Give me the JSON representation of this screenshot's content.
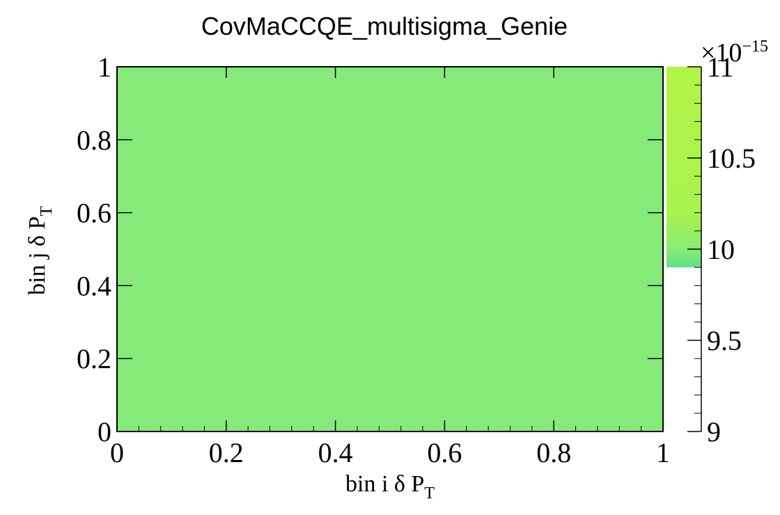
{
  "chart_data": {
    "type": "heatmap",
    "title": "CovMaCCQE_multisigma_Genie",
    "xlabel": {
      "main": "bin i  δ P",
      "sub": "T"
    },
    "ylabel": {
      "main": "bin j δ P",
      "sub": "T"
    },
    "xlim": [
      0,
      1
    ],
    "ylim": [
      0,
      1
    ],
    "x_ticks": [
      "0",
      "0.2",
      "0.4",
      "0.6",
      "0.8",
      "1"
    ],
    "y_ticks": [
      "0",
      "0.2",
      "0.4",
      "0.6",
      "0.8",
      "1"
    ],
    "cells": [
      {
        "x": [
          0,
          1
        ],
        "y": [
          0,
          1
        ],
        "value": 10.0,
        "color": "#86ea7a"
      }
    ],
    "colorbar": {
      "range": [
        9,
        11
      ],
      "ticks": [
        "9",
        "9.5",
        "10",
        "10.5",
        "11"
      ],
      "tick_values": [
        9,
        9.5,
        10,
        10.5,
        11
      ],
      "scale_factor": {
        "base": "×10",
        "exponent": "−15"
      },
      "filled_range": [
        9.9,
        11
      ],
      "gradient": [
        {
          "value": 9.9,
          "color": "#5fe08a"
        },
        {
          "value": 10.0,
          "color": "#8aeb72"
        },
        {
          "value": 10.2,
          "color": "#a8f34c"
        },
        {
          "value": 11.0,
          "color": "#b0f548"
        }
      ]
    },
    "grid": false
  }
}
